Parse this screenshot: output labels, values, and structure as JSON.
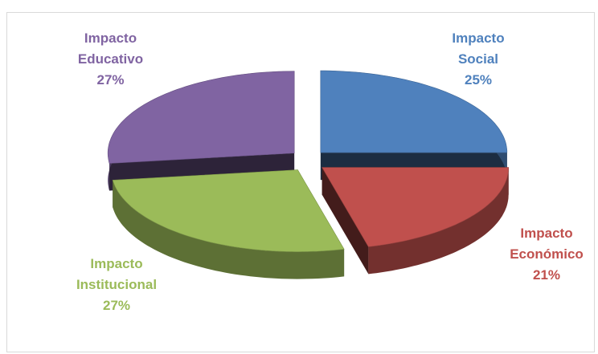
{
  "chart_data": {
    "type": "pie",
    "categories": [
      "Impacto Social",
      "Impacto Económico",
      "Impacto Institucional",
      "Impacto Educativo"
    ],
    "values": [
      25,
      21,
      27,
      27
    ],
    "value_labels": [
      "25%",
      "21%",
      "27%",
      "27%"
    ],
    "colors": [
      "#4f81bd",
      "#c0504d",
      "#9bbb59",
      "#8064a2"
    ],
    "label_colors": [
      "#4f81bd",
      "#c0504d",
      "#9bbb59",
      "#8064a2"
    ]
  }
}
